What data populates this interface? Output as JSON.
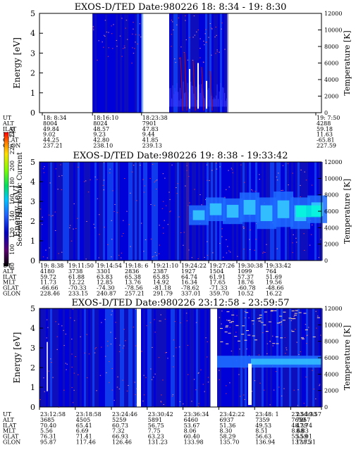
{
  "chart_data": [
    {
      "type": "heatmap",
      "title": "EXOS-D/TED   Date:980226  18: 8:34 - 19: 8:30",
      "ylabel": "Energy [eV]",
      "y2label": "Temperature [K]",
      "ylim": [
        0,
        5
      ],
      "y2lim": [
        0,
        12000
      ],
      "yticks": [
        "0",
        "1",
        "2",
        "3",
        "4",
        "5"
      ],
      "y2ticks": [
        "0",
        "2000",
        "4000",
        "6000",
        "8000",
        "10000",
        "12000"
      ],
      "segments": [
        [
          18.8,
          36.2
        ],
        [
          46.0,
          66.5
        ]
      ],
      "columns": [
        {
          "pos": 1.0,
          "ut": "18: 8:34",
          "alt": "8004",
          "ilat": "49.84",
          "mlt": "9.02",
          "glat": "44.25",
          "glon": "237.21"
        },
        {
          "pos": 18.8,
          "ut": "18:16:10",
          "alt": "8024",
          "ilat": "48.57",
          "mlt": "9.23",
          "glat": "42.80",
          "glon": "238.10"
        },
        {
          "pos": 36.2,
          "ut": "18:23:38",
          "alt": "7901",
          "ilat": "47.83",
          "mlt": "9.44",
          "glat": "41.85",
          "glon": "239.13"
        },
        {
          "pos": 98.0,
          "ut": "19: 7:50",
          "alt": "4288",
          "ilat": "59.18",
          "mlt": "11.63",
          "glat": "-65.81",
          "glon": "227.59"
        }
      ]
    },
    {
      "type": "heatmap",
      "title": "EXOS-D/TED   Date:980226  19: 8:38 - 19:33:42",
      "ylabel": "Energy [eV]",
      "y2label": "Temperature [K]",
      "ylim": [
        0,
        5
      ],
      "y2lim": [
        0,
        12000
      ],
      "yticks": [
        "0",
        "1",
        "2",
        "3",
        "4",
        "5"
      ],
      "y2ticks": [
        "0",
        "2000",
        "4000",
        "6000",
        "8000",
        "10000",
        "12000"
      ],
      "colorbar": {
        "label": "Second Harmonic Current",
        "min": 80,
        "max": 240,
        "ticks": [
          "80",
          "100",
          "120",
          "140",
          "160",
          "180",
          "200",
          "220",
          "240"
        ]
      },
      "columns": [
        {
          "pos": 0,
          "ut": "19: 8:38",
          "alt": "4180",
          "ilat": "59.72",
          "mlt": "11.73",
          "glat": "-66.66",
          "glon": "228.46"
        },
        {
          "pos": 10,
          "ut": "19:11:50",
          "alt": "3738",
          "ilat": "61.88",
          "mlt": "12.22",
          "glat": "-70.33",
          "glon": "233.15"
        },
        {
          "pos": 20,
          "ut": "19:14:54",
          "alt": "3301",
          "ilat": "63.83",
          "mlt": "12.85",
          "glat": "-74.30",
          "glon": "240.87"
        },
        {
          "pos": 30,
          "ut": "19:18: 6",
          "alt": "2836",
          "ilat": "65.38",
          "mlt": "13.76",
          "glat": "-78.56",
          "glon": "257.21"
        },
        {
          "pos": 40,
          "ut": "19:21:10",
          "alt": "2387",
          "ilat": "65.85",
          "mlt": "14.92",
          "glat": "-81.18",
          "glon": "291.79"
        },
        {
          "pos": 50,
          "ut": "19:24:22",
          "alt": "1927",
          "ilat": "64.74",
          "mlt": "16.34",
          "glat": "-78.62",
          "glon": "337.01"
        },
        {
          "pos": 60,
          "ut": "19:27:26",
          "alt": "1504",
          "ilat": "61.91",
          "mlt": "17.65",
          "glat": "-71.33",
          "glon": "359.70"
        },
        {
          "pos": 70,
          "ut": "19:30:38",
          "alt": "1099",
          "ilat": "57.37",
          "mlt": "18.76",
          "glat": "-60.78",
          "glon": "10.52"
        },
        {
          "pos": 80,
          "ut": "19:33:42",
          "alt": "764",
          "ilat": "51.69",
          "mlt": "19.56",
          "glat": "-48.66",
          "glon": "16.22"
        }
      ]
    },
    {
      "type": "heatmap",
      "title": "EXOS-D/TED   Date:980226  23:12:58 - 23:59:57",
      "ylabel": "Energy [eV]",
      "y2label": "Temperature [K]",
      "ylim": [
        0,
        5
      ],
      "y2lim": [
        0,
        12000
      ],
      "yticks": [
        "0",
        "1",
        "2",
        "3",
        "4",
        "5"
      ],
      "y2ticks": [
        "0",
        "2000",
        "4000",
        "6000",
        "8000",
        "10000",
        "12000"
      ],
      "segments": [
        [
          0,
          34.5
        ],
        [
          36.0,
          60.5
        ],
        [
          63.0,
          100
        ]
      ],
      "columns": [
        {
          "pos": 0,
          "ut": "23:12:58",
          "alt": "3685",
          "ilat": "70.40",
          "mlt": "5.56",
          "glat": "76.31",
          "glon": "95.87"
        },
        {
          "pos": 12.7,
          "ut": "23:18:58",
          "alt": "4505",
          "ilat": "65.41",
          "mlt": "6.69",
          "glat": "71.41",
          "glon": "117.46"
        },
        {
          "pos": 25.5,
          "ut": "23:24:46",
          "alt": "5259",
          "ilat": "60.73",
          "mlt": "7.32",
          "glat": "66.93",
          "glon": "126.46"
        },
        {
          "pos": 38.2,
          "ut": "23:30:42",
          "alt": "5891",
          "ilat": "56.75",
          "mlt": "7.75",
          "glat": "63.23",
          "glon": "131.23"
        },
        {
          "pos": 50.9,
          "ut": "23:36:34",
          "alt": "6460",
          "ilat": "53.67",
          "mlt": "8.06",
          "glat": "60.40",
          "glon": "133.98"
        },
        {
          "pos": 63.6,
          "ut": "23:42:22",
          "alt": "6937",
          "ilat": "51.36",
          "mlt": "8.30",
          "glat": "58.29",
          "glon": "135.70"
        },
        {
          "pos": 76.3,
          "ut": "23:48: 1",
          "alt": "7359",
          "ilat": "49.53",
          "mlt": "8.51",
          "glat": "56.63",
          "glon": "136.94"
        },
        {
          "pos": 89.1,
          "ut": "23:54:33",
          "alt": "7659",
          "ilat": "48.39",
          "mlt": "8.68",
          "glat": "55.59",
          "glon": "137.75"
        },
        {
          "pos": 100,
          "ut": "23:59:57",
          "alt": "7857",
          "ilat": "47.74",
          "mlt": "8.83",
          "glat": "55.01",
          "glon": "138.31"
        }
      ]
    }
  ],
  "row_labels": [
    "UT",
    "ALT",
    "ILAT",
    "MLT",
    "GLAT",
    "GLON"
  ],
  "colors": {
    "background": "#0000d8",
    "low": "#1a1aa8",
    "mid": "#1e6cff",
    "high": "#34c8ff",
    "peak": "#00ffd8",
    "trace": "#ff4040"
  }
}
